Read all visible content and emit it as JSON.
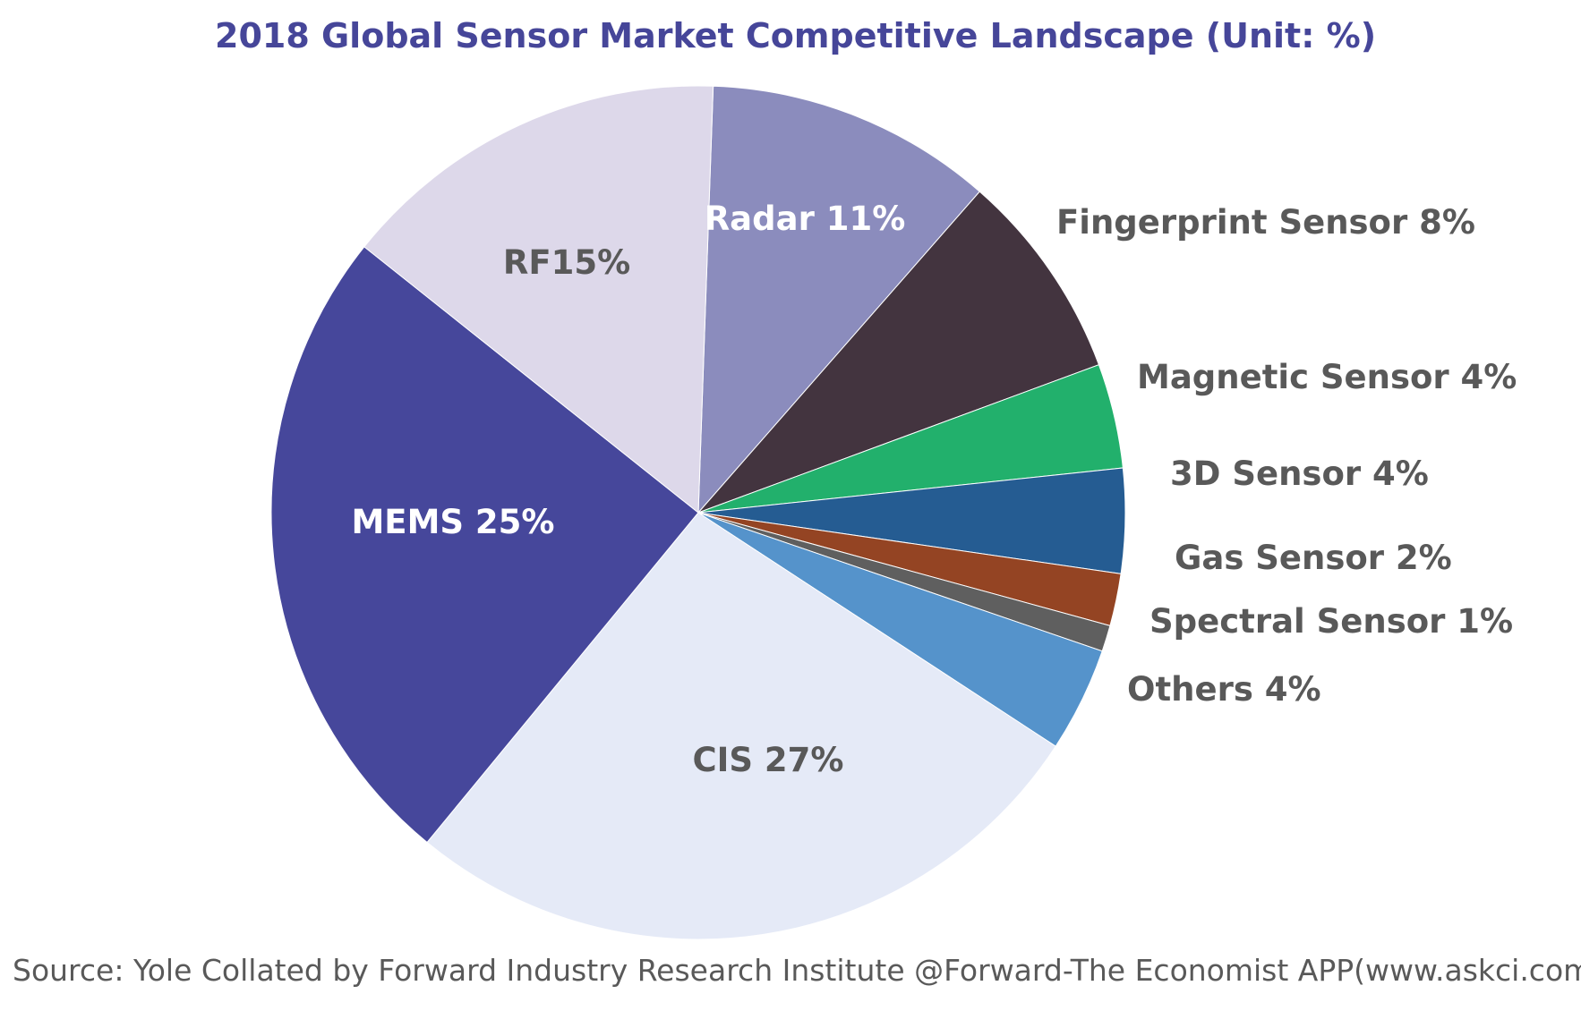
{
  "chart_data": {
    "type": "pie",
    "title": "2018 Global Sensor Market Competitive Landscape (Unit: %)",
    "unit": "%",
    "slices": [
      {
        "label": "Radar 11%",
        "value": 11,
        "color": "#8b8cbd",
        "label_color": "#ffffff",
        "label_inside": true
      },
      {
        "label": "Fingerprint Sensor 8%",
        "value": 8,
        "color": "#43343f",
        "label_color": "#595959",
        "label_inside": false
      },
      {
        "label": "Magnetic Sensor 4%",
        "value": 4,
        "color": "#22b06c",
        "label_color": "#595959",
        "label_inside": false
      },
      {
        "label": "3D Sensor 4%",
        "value": 4,
        "color": "#255c92",
        "label_color": "#595959",
        "label_inside": false
      },
      {
        "label": "Gas Sensor 2%",
        "value": 2,
        "color": "#944423",
        "label_color": "#595959",
        "label_inside": false
      },
      {
        "label": "Spectral Sensor 1%",
        "value": 1,
        "color": "#5f5f5f",
        "label_color": "#595959",
        "label_inside": false
      },
      {
        "label": "Others 4%",
        "value": 4,
        "color": "#5593cb",
        "label_color": "#595959",
        "label_inside": false
      },
      {
        "label": "CIS 27%",
        "value": 27,
        "color": "#e5eaf7",
        "label_color": "#595959",
        "label_inside": true
      },
      {
        "label": "MEMS 25%",
        "value": 25,
        "color": "#46479b",
        "label_color": "#ffffff",
        "label_inside": true
      },
      {
        "label": "RF15%",
        "value": 15,
        "color": "#ddd8ea",
        "label_color": "#595959",
        "label_inside": true
      }
    ]
  },
  "source": "Source: Yole Collated by Forward Industry Research Institute @Forward-The Economist APP(www.askci.com)"
}
